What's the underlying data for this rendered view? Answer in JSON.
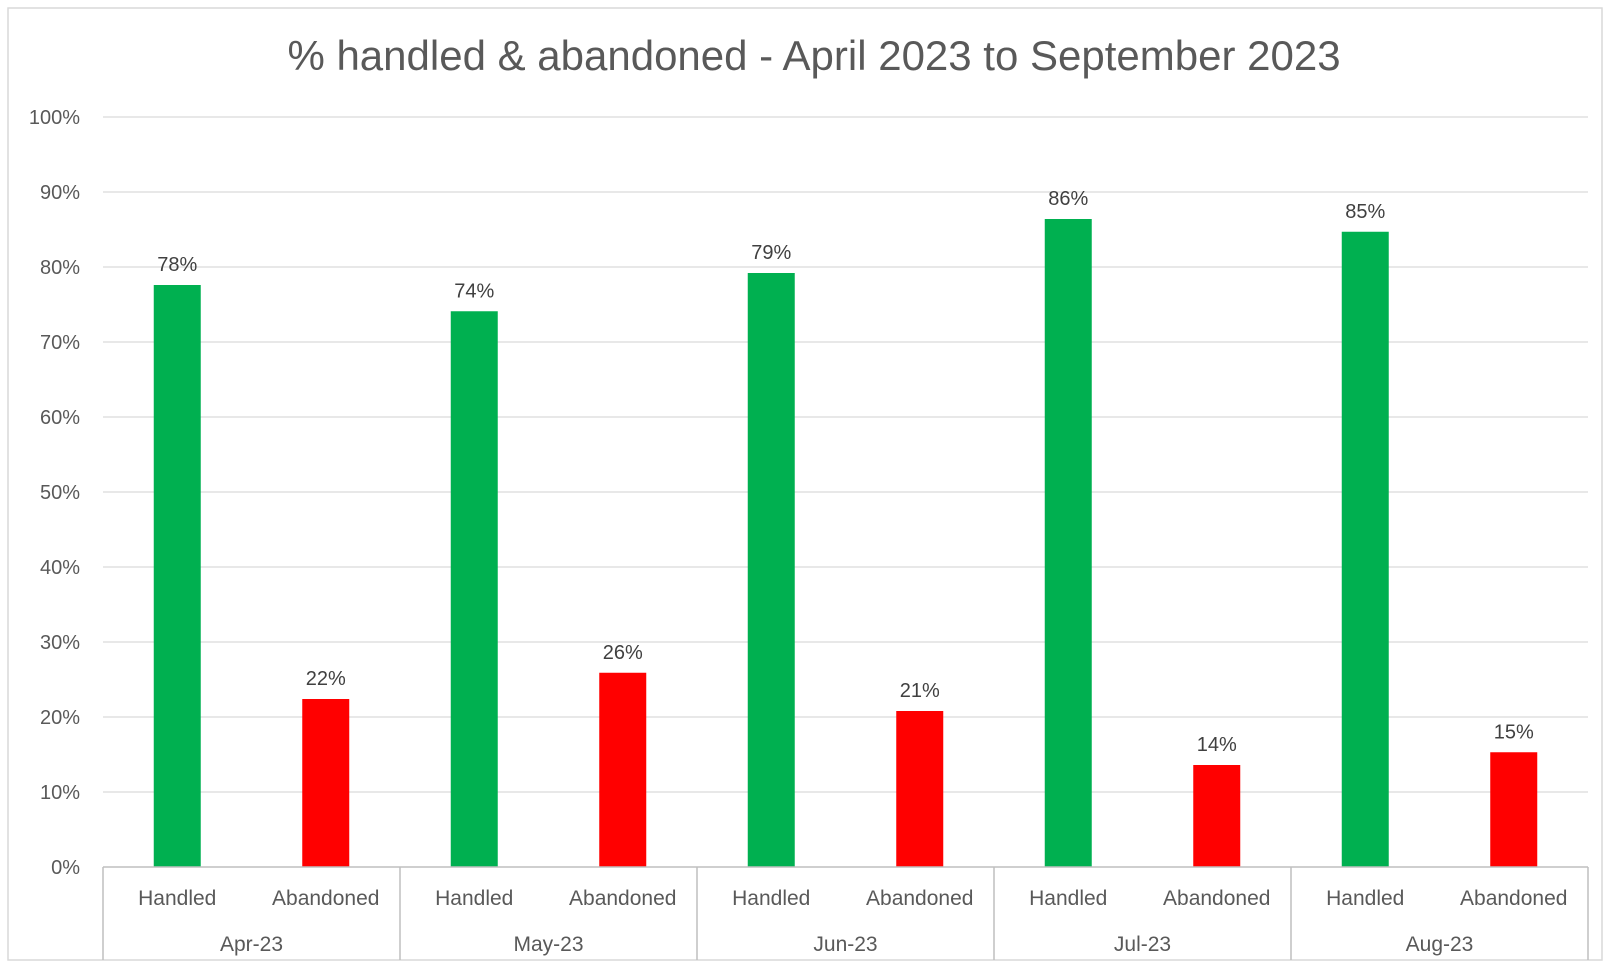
{
  "chart_data": {
    "type": "bar",
    "title": "% handled & abandoned - April 2023 to September 2023",
    "xlabel": "",
    "ylabel": "",
    "ylim": [
      0,
      100
    ],
    "y_ticks": [
      "0%",
      "10%",
      "20%",
      "30%",
      "40%",
      "50%",
      "60%",
      "70%",
      "80%",
      "90%",
      "100%"
    ],
    "grid": true,
    "legend": "none",
    "groups": [
      {
        "label": "Apr-23",
        "bars": [
          {
            "category": "Handled",
            "value": 77.6,
            "label": "78%"
          },
          {
            "category": "Abandoned",
            "value": 22.4,
            "label": "22%"
          }
        ]
      },
      {
        "label": "May-23",
        "bars": [
          {
            "category": "Handled",
            "value": 74.1,
            "label": "74%"
          },
          {
            "category": "Abandoned",
            "value": 25.9,
            "label": "26%"
          }
        ]
      },
      {
        "label": "Jun-23",
        "bars": [
          {
            "category": "Handled",
            "value": 79.2,
            "label": "79%"
          },
          {
            "category": "Abandoned",
            "value": 20.8,
            "label": "21%"
          }
        ]
      },
      {
        "label": "Jul-23",
        "bars": [
          {
            "category": "Handled",
            "value": 86.4,
            "label": "86%"
          },
          {
            "category": "Abandoned",
            "value": 13.6,
            "label": "14%"
          }
        ]
      },
      {
        "label": "Aug-23",
        "bars": [
          {
            "category": "Handled",
            "value": 84.7,
            "label": "85%"
          },
          {
            "category": "Abandoned",
            "value": 15.3,
            "label": "15%"
          }
        ]
      }
    ],
    "colors": {
      "Handled": "#00B050",
      "Abandoned": "#FF0000",
      "gridline": "#D9D9D9",
      "axis": "#BFBFBF",
      "text": "#595959"
    }
  }
}
